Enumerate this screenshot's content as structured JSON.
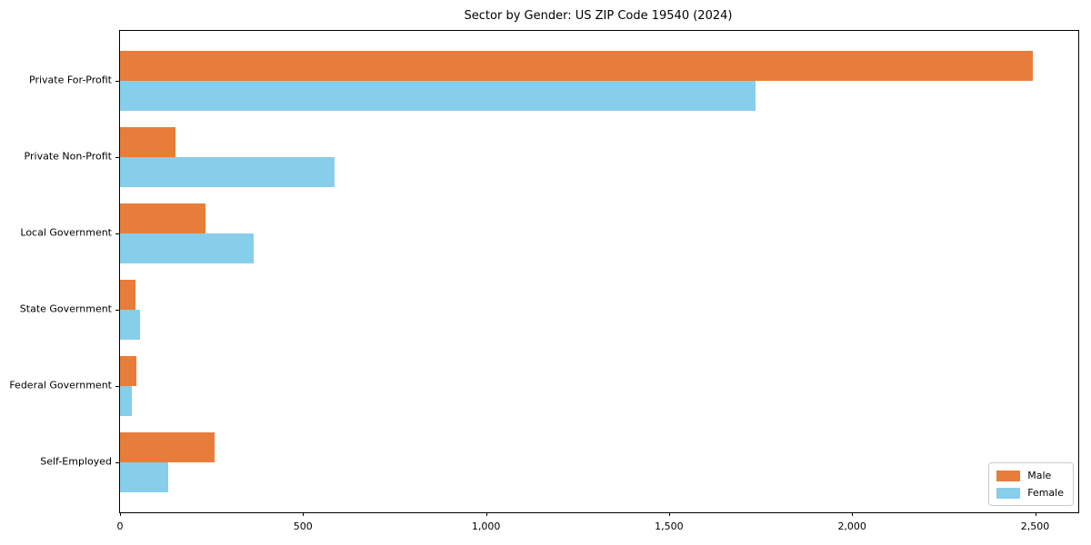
{
  "chart_data": {
    "type": "bar",
    "orientation": "horizontal",
    "title": "Sector by Gender: US ZIP Code 19540 (2024)",
    "xlabel": "",
    "ylabel": "",
    "categories": [
      "Private For-Profit",
      "Private Non-Profit",
      "Local Government",
      "State Government",
      "Federal Government",
      "Self-Employed"
    ],
    "series": [
      {
        "name": "Male",
        "color": "#e87d3b",
        "values": [
          2493,
          152,
          234,
          42,
          45,
          258
        ]
      },
      {
        "name": "Female",
        "color": "#87ceeb",
        "values": [
          1735,
          586,
          365,
          55,
          32,
          132
        ]
      }
    ],
    "xlim": [
      0,
      2618
    ],
    "xticks": {
      "values": [
        0,
        500,
        1000,
        1500,
        2000,
        2500
      ],
      "labels": [
        "0",
        "500",
        "1,000",
        "1,500",
        "2,000",
        "2,500"
      ]
    },
    "grid": false,
    "legend_position": "lower right"
  }
}
